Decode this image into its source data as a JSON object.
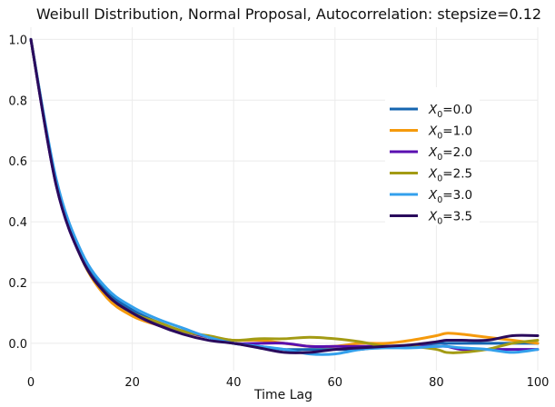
{
  "chart_data": {
    "type": "line",
    "title": "Weibull Distribution, Normal Proposal, Autocorrelation: stepsize=0.12",
    "xlabel": "Time Lag",
    "ylabel": "",
    "xlim": [
      0,
      100
    ],
    "ylim": [
      -0.09,
      1.04
    ],
    "xticks": [
      0,
      20,
      40,
      60,
      80,
      100
    ],
    "yticks": [
      0.0,
      0.2,
      0.4,
      0.6,
      0.8,
      1.0
    ],
    "xtick_labels": [
      "0",
      "20",
      "40",
      "60",
      "80",
      "100"
    ],
    "ytick_labels": [
      "0.0",
      "0.2",
      "0.4",
      "0.6",
      "0.8",
      "1.0"
    ],
    "grid": true,
    "legend_position": "right",
    "x": [
      0,
      5,
      10,
      15,
      20,
      25,
      30,
      35,
      40,
      45,
      50,
      55,
      60,
      65,
      70,
      75,
      80,
      82,
      85,
      90,
      95,
      100
    ],
    "series": [
      {
        "name": "$X_0$=0.0",
        "legend_base": "X",
        "legend_sub": "0",
        "legend_value": "=0.0",
        "color": "#1565b0",
        "values": [
          1.0,
          0.53,
          0.29,
          0.17,
          0.11,
          0.07,
          0.04,
          0.02,
          0.0,
          -0.01,
          -0.02,
          -0.02,
          -0.02,
          -0.02,
          -0.01,
          -0.01,
          0.0,
          0.0,
          0.0,
          0.0,
          0.0,
          0.0
        ]
      },
      {
        "name": "$X_0$=1.0",
        "legend_base": "X",
        "legend_sub": "0",
        "legend_value": "=1.0",
        "color": "#f59a0c",
        "values": [
          1.0,
          0.53,
          0.28,
          0.15,
          0.09,
          0.06,
          0.04,
          0.02,
          0.01,
          0.01,
          0.0,
          -0.01,
          -0.01,
          0.0,
          0.0,
          0.01,
          0.025,
          0.033,
          0.03,
          0.02,
          0.01,
          0.0
        ]
      },
      {
        "name": "$X_0$=2.0",
        "legend_base": "X",
        "legend_sub": "0",
        "legend_value": "=2.0",
        "color": "#5a0fb0",
        "values": [
          1.0,
          0.52,
          0.28,
          0.16,
          0.1,
          0.06,
          0.04,
          0.02,
          0.0,
          0.0,
          0.0,
          -0.01,
          -0.01,
          -0.01,
          -0.01,
          -0.01,
          -0.01,
          -0.01,
          -0.02,
          -0.02,
          -0.02,
          -0.02
        ]
      },
      {
        "name": "$X_0$=2.5",
        "legend_base": "X",
        "legend_sub": "0",
        "legend_value": "=2.5",
        "color": "#a39b14",
        "values": [
          1.0,
          0.53,
          0.28,
          0.16,
          0.1,
          0.07,
          0.04,
          0.025,
          0.01,
          0.015,
          0.015,
          0.02,
          0.015,
          0.005,
          -0.01,
          -0.01,
          -0.02,
          -0.03,
          -0.03,
          -0.02,
          0.0,
          0.01
        ]
      },
      {
        "name": "$X_0$=3.0",
        "legend_base": "X",
        "legend_sub": "0",
        "legend_value": "=3.0",
        "color": "#33a0ec",
        "values": [
          1.0,
          0.54,
          0.3,
          0.18,
          0.12,
          0.08,
          0.05,
          0.02,
          0.0,
          -0.01,
          -0.02,
          -0.035,
          -0.035,
          -0.02,
          -0.015,
          -0.015,
          -0.01,
          -0.01,
          -0.015,
          -0.02,
          -0.03,
          -0.02
        ]
      },
      {
        "name": "$X_0$=3.5",
        "legend_base": "X",
        "legend_sub": "0",
        "legend_value": "=3.5",
        "color": "#2a0a5c",
        "values": [
          1.0,
          0.52,
          0.28,
          0.16,
          0.1,
          0.06,
          0.03,
          0.01,
          0.0,
          -0.015,
          -0.03,
          -0.03,
          -0.02,
          -0.015,
          -0.01,
          -0.005,
          0.005,
          0.01,
          0.01,
          0.01,
          0.025,
          0.025
        ]
      }
    ]
  }
}
